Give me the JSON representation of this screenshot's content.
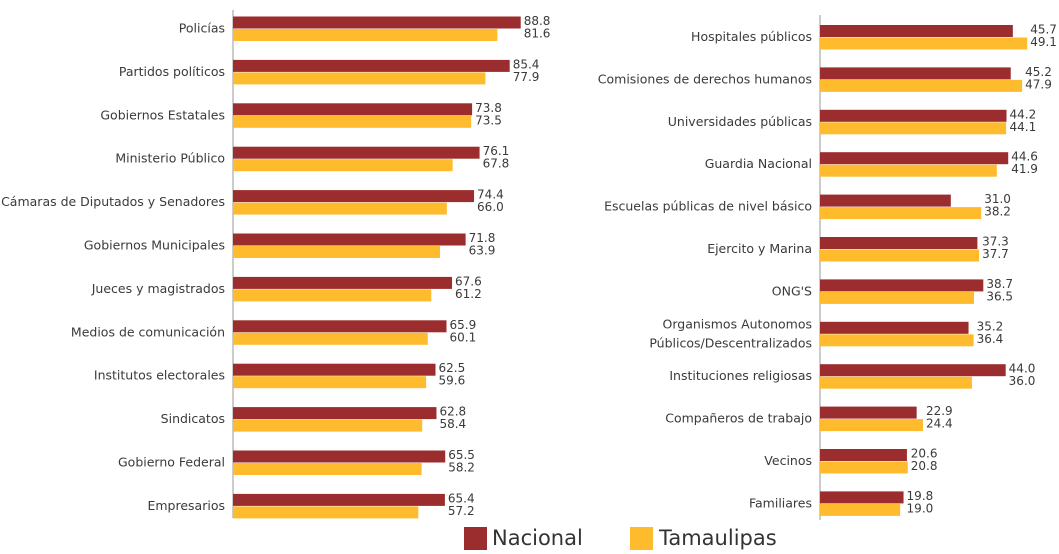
{
  "chart_data": [
    {
      "type": "bar",
      "orientation": "horizontal",
      "categories": [
        "Policías",
        "Partidos políticos",
        "Gobiernos Estatales",
        "Ministerio Público",
        "Cámaras de Diputados y Senadores",
        "Gobiernos Municipales",
        "Jueces y magistrados",
        "Medios de comunicación",
        "Institutos electorales",
        "Sindicatos",
        "Gobierno Federal",
        "Empresarios"
      ],
      "series": [
        {
          "name": "Nacional",
          "color": "#9b2d2e",
          "values": [
            88.8,
            85.4,
            73.8,
            76.1,
            74.4,
            71.8,
            67.6,
            65.9,
            62.5,
            62.8,
            65.5,
            65.4
          ],
          "value_labels": [
            "88.8",
            "85.4",
            "73.8",
            "76.1",
            "74.4",
            "71.8",
            "67.6",
            "65.9",
            "62.5",
            "62.8",
            "65.5",
            "65.4"
          ]
        },
        {
          "name": "Tamaulipas",
          "color": "#fdbb2d",
          "values": [
            81.6,
            77.9,
            73.5,
            67.8,
            66.0,
            63.9,
            61.2,
            60.1,
            59.6,
            58.4,
            58.2,
            57.2
          ],
          "value_labels": [
            "81.6",
            "77.9",
            "73.5",
            "67.8",
            "66.0",
            "63.9",
            "61.2",
            "60.1",
            "59.6",
            "58.4",
            "58.2",
            "57.2"
          ]
        }
      ],
      "xlim": [
        0,
        100
      ]
    },
    {
      "type": "bar",
      "orientation": "horizontal",
      "categories": [
        "Hospitales públicos",
        "Comisiones de derechos humanos",
        "Universidades públicas",
        "Guardia Nacional",
        "Escuelas públicas de nivel básico",
        "Ejercito y Marina",
        "ONG'S",
        "Organismos Autonomos\nPúblicos/Descentralizados",
        "Instituciones religiosas",
        "Compañeros de trabajo",
        "Vecinos",
        "Familiares"
      ],
      "series": [
        {
          "name": "Nacional",
          "color": "#9b2d2e",
          "values": [
            45.7,
            45.2,
            44.2,
            44.6,
            31.0,
            37.3,
            38.7,
            35.2,
            44.0,
            22.9,
            20.6,
            19.8
          ],
          "value_labels": [
            "45.7",
            "45.2",
            "44.2",
            "44.6",
            "31.0",
            "37.3",
            "38.7",
            "35.2",
            "44.0",
            "22.9",
            "20.6",
            "19.8"
          ]
        },
        {
          "name": "Tamaulipas",
          "color": "#fdbb2d",
          "values": [
            49.1,
            47.9,
            44.1,
            41.9,
            38.2,
            37.7,
            36.5,
            36.4,
            36.0,
            24.4,
            20.8,
            19.0
          ],
          "value_labels": [
            "49.1",
            "47.9",
            "44.1",
            "41.9",
            "38.2",
            "37.7",
            "36.5",
            "36.4",
            "36.0",
            "24.4",
            "20.8",
            "19.0"
          ]
        }
      ],
      "xlim": [
        0,
        50
      ]
    }
  ]
}
